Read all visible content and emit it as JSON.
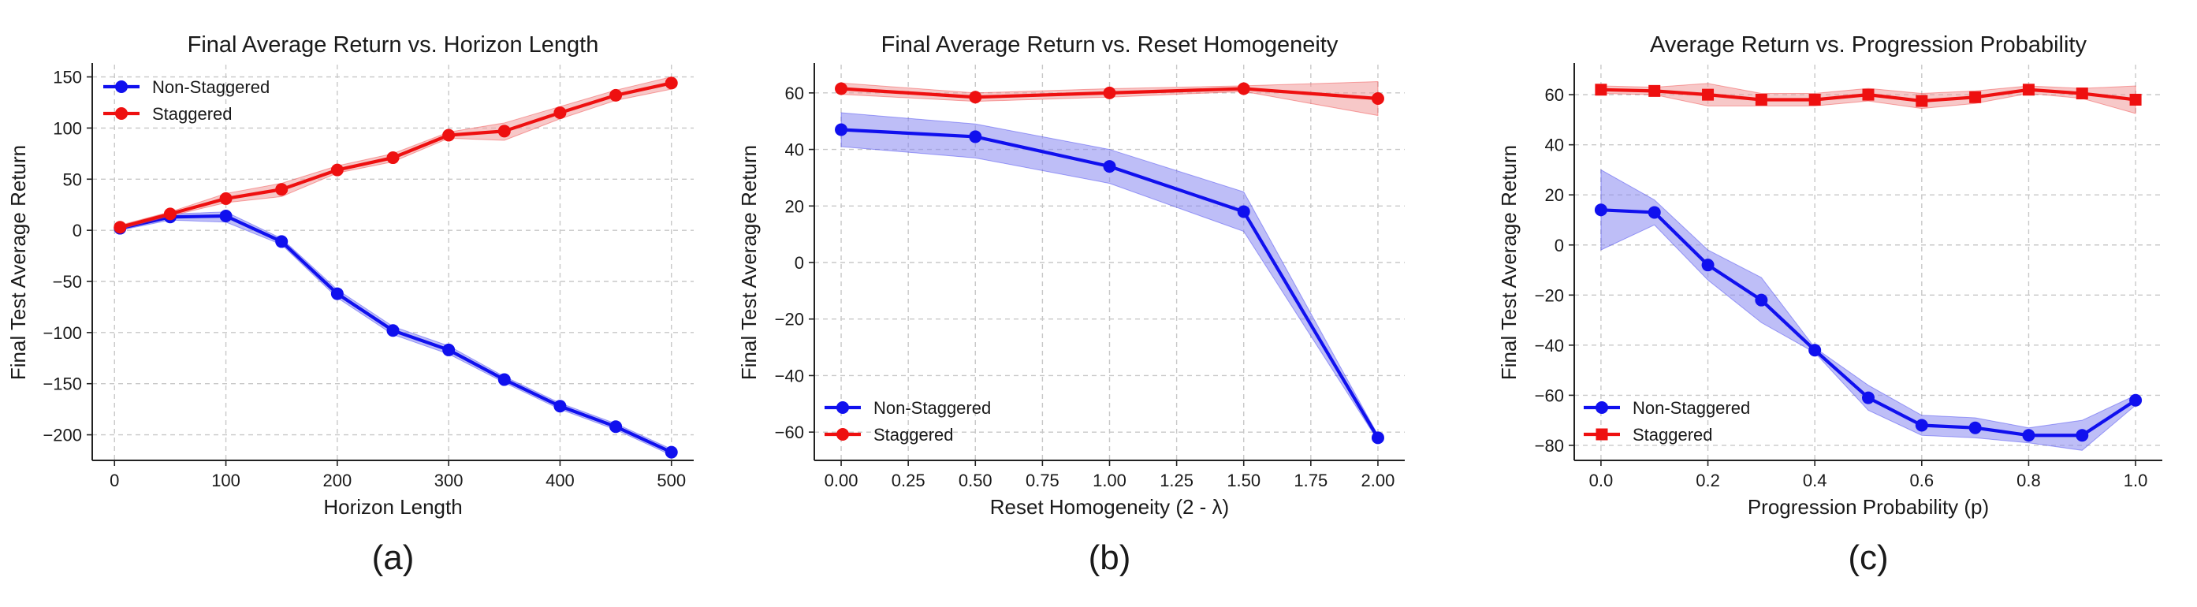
{
  "chart_data": [
    {
      "type": "line",
      "title": "Final Average Return vs. Horizon Length",
      "xlabel": "Horizon Length",
      "ylabel": "Final Test Average Return",
      "caption": "(a)",
      "xlim": [
        -20,
        520
      ],
      "ylim": [
        -225,
        162
      ],
      "xticks": [
        0,
        100,
        200,
        300,
        400,
        500
      ],
      "yticks": [
        -200,
        -150,
        -100,
        -50,
        0,
        50,
        100,
        150
      ],
      "x_tick_format": "int",
      "y_tick_format": "int",
      "legend_position": "upper-left",
      "grid": true,
      "series": [
        {
          "name": "Non-Staggered",
          "color": "#1010ee",
          "fill": "#8888f0",
          "marker": "circle",
          "x": [
            5,
            50,
            100,
            150,
            200,
            250,
            300,
            350,
            400,
            450,
            500
          ],
          "y": [
            2,
            13,
            14,
            -11,
            -62,
            -98,
            -117,
            -146,
            -172,
            -192,
            -217
          ],
          "lower": [
            0,
            10,
            8,
            -14,
            -66,
            -102,
            -121,
            -149,
            -175,
            -195,
            -220
          ],
          "upper": [
            4,
            16,
            18,
            -8,
            -58,
            -94,
            -113,
            -143,
            -169,
            -189,
            -214
          ]
        },
        {
          "name": "Staggered",
          "color": "#ee1010",
          "fill": "#f09a9a",
          "marker": "circle",
          "x": [
            5,
            50,
            100,
            150,
            200,
            250,
            300,
            350,
            400,
            450,
            500
          ],
          "y": [
            3,
            16,
            31,
            40,
            59,
            71,
            93,
            97,
            115,
            132,
            144
          ],
          "lower": [
            1,
            14,
            27,
            33,
            56,
            67,
            90,
            88,
            109,
            127,
            138
          ],
          "upper": [
            5,
            18,
            36,
            46,
            63,
            75,
            96,
            105,
            121,
            137,
            150
          ]
        }
      ]
    },
    {
      "type": "line",
      "title": "Final Average Return vs. Reset Homogeneity",
      "xlabel": "Reset Homogeneity (2 - λ)",
      "ylabel": "Final Test Average Return",
      "caption": "(b)",
      "xlim": [
        -0.1,
        2.1
      ],
      "ylim": [
        -70,
        70
      ],
      "xticks": [
        0.0,
        0.25,
        0.5,
        0.75,
        1.0,
        1.25,
        1.5,
        1.75,
        2.0
      ],
      "yticks": [
        -60,
        -40,
        -20,
        0,
        20,
        40,
        60
      ],
      "x_tick_format": "2dp",
      "y_tick_format": "int",
      "legend_position": "lower-left",
      "grid": true,
      "series": [
        {
          "name": "Non-Staggered",
          "color": "#1010ee",
          "fill": "#8888f0",
          "marker": "circle",
          "x": [
            0.0,
            0.5,
            1.0,
            1.5,
            2.0
          ],
          "y": [
            47,
            44.5,
            34,
            18,
            -62
          ],
          "lower": [
            41,
            37,
            28,
            11,
            -63
          ],
          "upper": [
            53,
            49,
            40,
            25,
            -61
          ]
        },
        {
          "name": "Staggered",
          "color": "#ee1010",
          "fill": "#f09a9a",
          "marker": "circle",
          "x": [
            0.0,
            0.5,
            1.0,
            1.5,
            2.0
          ],
          "y": [
            61.5,
            58.5,
            60,
            61.5,
            58
          ],
          "lower": [
            59.5,
            57,
            58.5,
            60.5,
            52
          ],
          "upper": [
            63.5,
            60,
            61.5,
            62.5,
            64
          ]
        }
      ]
    },
    {
      "type": "line",
      "title": "Average Return vs. Progression Probability",
      "xlabel": "Progression Probability (p)",
      "ylabel": "Final Test Average Return",
      "caption": "(c)",
      "xlim": [
        -0.05,
        1.05
      ],
      "ylim": [
        -86,
        72
      ],
      "xticks": [
        0.0,
        0.2,
        0.4,
        0.6,
        0.8,
        1.0
      ],
      "yticks": [
        -80,
        -60,
        -40,
        -20,
        0,
        20,
        40,
        60
      ],
      "x_tick_format": "1dp",
      "y_tick_format": "int",
      "legend_position": "lower-left",
      "grid": true,
      "series": [
        {
          "name": "Non-Staggered",
          "color": "#1010ee",
          "fill": "#8888f0",
          "marker": "circle",
          "x": [
            0.0,
            0.1,
            0.2,
            0.3,
            0.4,
            0.5,
            0.6,
            0.7,
            0.8,
            0.9,
            1.0
          ],
          "y": [
            14,
            13,
            -8,
            -22,
            -42,
            -61,
            -72,
            -73,
            -76,
            -76,
            -62
          ],
          "lower": [
            -2,
            8,
            -14,
            -31,
            -43,
            -66,
            -76,
            -77,
            -79,
            -82,
            -64
          ],
          "upper": [
            30,
            18,
            -2,
            -13,
            -41,
            -56,
            -68,
            -69,
            -73,
            -70,
            -60
          ]
        },
        {
          "name": "Staggered",
          "color": "#ee1010",
          "fill": "#f09a9a",
          "marker": "square",
          "x": [
            0.0,
            0.1,
            0.2,
            0.3,
            0.4,
            0.5,
            0.6,
            0.7,
            0.8,
            0.9,
            1.0
          ],
          "y": [
            62,
            61.5,
            60,
            58,
            58,
            60,
            57.5,
            59,
            62,
            60.5,
            58
          ],
          "lower": [
            60.5,
            60,
            55.5,
            55.5,
            55.5,
            57.5,
            54.5,
            56.5,
            60.5,
            58.5,
            52.5
          ],
          "upper": [
            63.5,
            63,
            64.5,
            60.5,
            60.5,
            62.5,
            60.5,
            61.5,
            63.5,
            62.5,
            63.5
          ]
        }
      ]
    }
  ]
}
